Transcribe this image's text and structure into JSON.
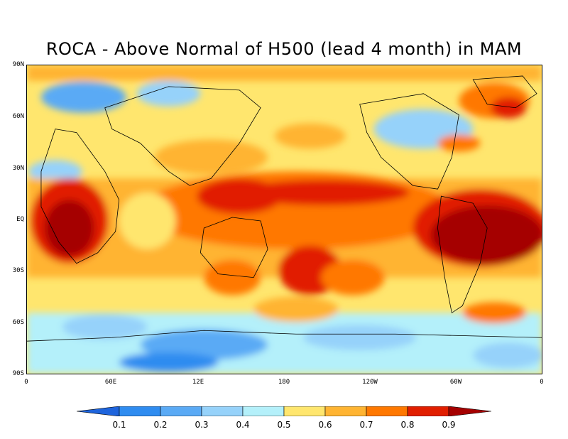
{
  "title": "ROCA - Above Normal of H500 (lead 4 month) in MAM",
  "map": {
    "projection": "equirectangular",
    "lon_range": [
      0,
      360
    ],
    "lat_range": [
      -90,
      90
    ],
    "lat_labels": [
      "90N",
      "60N",
      "30N",
      "EQ",
      "30S",
      "60S",
      "90S"
    ],
    "lon_labels": [
      "0",
      "60E",
      "12E",
      "180",
      "120W",
      "60W",
      "0"
    ]
  },
  "colorbar": {
    "ticks": [
      "0.1",
      "0.2",
      "0.3",
      "0.4",
      "0.5",
      "0.6",
      "0.7",
      "0.8",
      "0.9"
    ],
    "colors": [
      "#1e64dc",
      "#2f8cf0",
      "#5aaaf5",
      "#96d2fa",
      "#b4f0fa",
      "#ffe66e",
      "#ffb432",
      "#ff7800",
      "#e11e00",
      "#a50000"
    ]
  }
}
